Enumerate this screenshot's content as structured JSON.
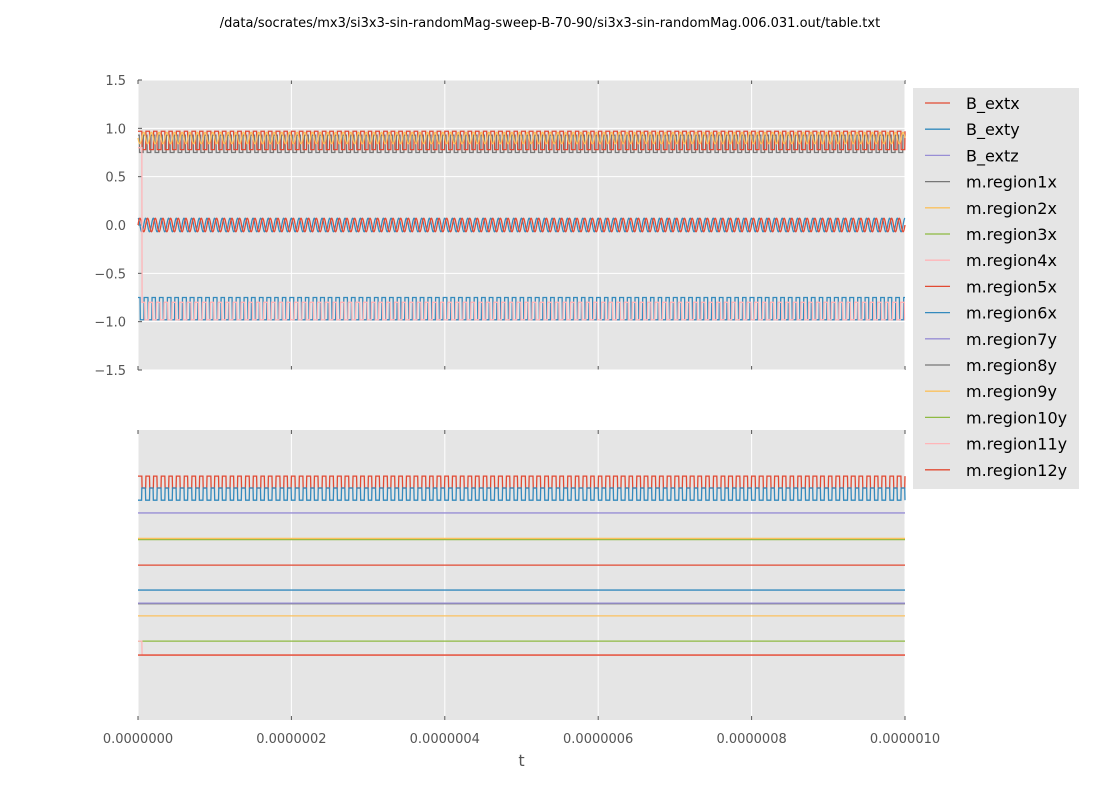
{
  "title": "/data/socrates/mx3/si3x3-sin-randomMag-sweep-B-70-90/si3x3-sin-randomMag.006.031.out/table.txt",
  "chart_data": [
    {
      "type": "line",
      "panel": "top",
      "xlim": [
        0,
        1e-06
      ],
      "ylim": [
        -1.5,
        1.5
      ],
      "yticks": [
        "1.5",
        "1.0",
        "0.5",
        "0.0",
        "−0.5",
        "−1.0",
        "−1.5"
      ],
      "ytick_values": [
        1.5,
        1.0,
        0.5,
        0.0,
        -0.5,
        -1.0,
        -1.5
      ],
      "grid": true,
      "series": [
        {
          "name": "m.region1x",
          "color": "#777777",
          "pattern": "square",
          "low": 0.75,
          "high": 0.93,
          "period": 1e-08,
          "phase": 0.3
        },
        {
          "name": "m.region5x",
          "color": "#E24A33",
          "pattern": "square",
          "low": 0.78,
          "high": 0.97,
          "period": 1e-08,
          "phase": 0
        },
        {
          "name": "m.region2x",
          "color": "#FBC15E",
          "pattern": "sine",
          "mean": 0.9,
          "amplitude": 0.06,
          "period": 1e-08,
          "phase": 0.5
        },
        {
          "name": "B_exty",
          "color": "#348ABD",
          "pattern": "sine",
          "mean": 0.0,
          "amplitude": 0.07,
          "period": 1e-08,
          "phase": 0.25
        },
        {
          "name": "B_extx",
          "color": "#E24A33",
          "pattern": "sine",
          "mean": 0.0,
          "amplitude": 0.07,
          "period": 1e-08,
          "phase": 0
        },
        {
          "name": "m.region6x",
          "color": "#348ABD",
          "pattern": "square",
          "low": -0.98,
          "high": -0.75,
          "period": 1e-08,
          "phase": 0.2
        },
        {
          "name": "m.region4x",
          "color": "#FFB5B8",
          "pattern": "square",
          "low": -0.98,
          "high": -0.8,
          "period": 1e-08,
          "phase": 0.6,
          "start": 0.8,
          "switch_t": 5e-09
        }
      ]
    },
    {
      "type": "line",
      "panel": "bottom",
      "xlim": [
        0,
        1e-06
      ],
      "ylim": [
        0,
        1
      ],
      "xticks": [
        "0.0000000",
        "0.0000002",
        "0.0000004",
        "0.0000006",
        "0.0000008",
        "0.0000010"
      ],
      "xtick_values": [
        0,
        2e-07,
        4e-07,
        6e-07,
        8e-07,
        1e-06
      ],
      "xlabel": "t",
      "grid": true,
      "series": [
        {
          "name": "m.region12y",
          "color": "#E24A33",
          "pattern": "square",
          "low": 0.8,
          "high": 0.841,
          "period": 1e-08,
          "phase": 0
        },
        {
          "name": "m.region6x",
          "color": "#348ABD",
          "pattern": "square",
          "low": 0.758,
          "high": 0.8,
          "period": 1e-08,
          "phase": 0.5
        },
        {
          "name": "m.region7y",
          "color": "#988ED5",
          "pattern": "const",
          "value": 0.714
        },
        {
          "name": "m.region3x",
          "color": "#8EBA42",
          "pattern": "const",
          "value": 0.622
        },
        {
          "name": "m.region9y",
          "color": "#FBC15E",
          "pattern": "const",
          "value": 0.626
        },
        {
          "name": "m.region5x",
          "color": "#E24A33",
          "pattern": "const",
          "value": 0.534
        },
        {
          "name": "B_exty",
          "color": "#348ABD",
          "pattern": "const",
          "value": 0.448
        },
        {
          "name": "m.region8y",
          "color": "#777777",
          "pattern": "const",
          "value": 0.401
        },
        {
          "name": "B_extz",
          "color": "#988ED5",
          "pattern": "const",
          "value": 0.403
        },
        {
          "name": "m.region2x",
          "color": "#FBC15E",
          "pattern": "const",
          "value": 0.359
        },
        {
          "name": "m.region10y",
          "color": "#8EBA42",
          "pattern": "const",
          "value": 0.272
        },
        {
          "name": "m.region11y",
          "color": "#FFB5B8",
          "pattern": "const",
          "value": 0.224,
          "start": 0.272,
          "switch_t": 5e-09
        },
        {
          "name": "B_extx",
          "color": "#E24A33",
          "pattern": "const",
          "value": 0.224
        }
      ]
    }
  ],
  "legend": {
    "placement": "right",
    "entries": [
      {
        "name": "B_extx",
        "color": "#E24A33"
      },
      {
        "name": "B_exty",
        "color": "#348ABD"
      },
      {
        "name": "B_extz",
        "color": "#988ED5"
      },
      {
        "name": "m.region1x",
        "color": "#777777"
      },
      {
        "name": "m.region2x",
        "color": "#FBC15E"
      },
      {
        "name": "m.region3x",
        "color": "#8EBA42"
      },
      {
        "name": "m.region4x",
        "color": "#FFB5B8"
      },
      {
        "name": "m.region5x",
        "color": "#E24A33"
      },
      {
        "name": "m.region6x",
        "color": "#348ABD"
      },
      {
        "name": "m.region7y",
        "color": "#988ED5"
      },
      {
        "name": "m.region8y",
        "color": "#777777"
      },
      {
        "name": "m.region9y",
        "color": "#FBC15E"
      },
      {
        "name": "m.region10y",
        "color": "#8EBA42"
      },
      {
        "name": "m.region11y",
        "color": "#FFB5B8"
      },
      {
        "name": "m.region12y",
        "color": "#E24A33"
      }
    ]
  }
}
